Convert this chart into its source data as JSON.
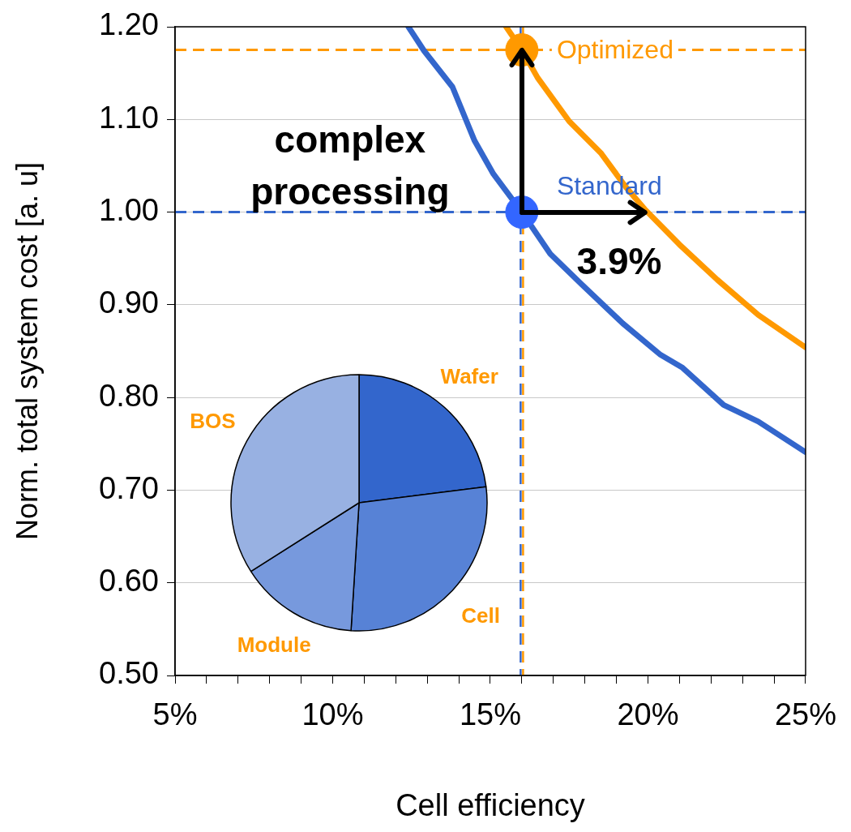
{
  "chart_data": [
    {
      "type": "line",
      "xlabel": "Cell efficiency",
      "ylabel": "Norm. total system cost [a. u]",
      "series": [
        {
          "color": "#3366cc",
          "x": [
            12.4,
            12.9,
            13.8,
            14.5,
            15.1,
            16,
            16.9,
            17.9,
            19.2,
            20.4,
            21.1,
            22.4,
            23.5,
            25
          ],
          "values": [
            1.2,
            1.174,
            1.135,
            1.077,
            1.041,
            1.0,
            0.955,
            0.922,
            0.88,
            0.846,
            0.832,
            0.792,
            0.774,
            0.741
          ]
        },
        {
          "color": "#ff9900",
          "x": [
            15.5,
            16,
            16.5,
            17.5,
            18.5,
            19.3,
            19.9,
            21,
            22.2,
            23.5,
            25
          ],
          "values": [
            1.2,
            1.175,
            1.145,
            1.098,
            1.064,
            1.027,
            1.003,
            0.965,
            0.927,
            0.889,
            0.854
          ]
        },
        {
          "type": "scatter",
          "color": "#3366ff",
          "x": [
            16
          ],
          "values": [
            1.0
          ],
          "marker": "circle"
        },
        {
          "type": "scatter",
          "color": "#ff9900",
          "x": [
            16
          ],
          "values": [
            1.175
          ],
          "marker": "circle"
        }
      ],
      "line_style": "solid",
      "ref_lines": [
        {
          "axis": "y",
          "value": 1.175,
          "label": "Optimized",
          "color": "#ff9900",
          "line_style": "dashed"
        },
        {
          "axis": "y",
          "value": 1.0,
          "label": "Standard",
          "color": "#3366cc",
          "line_style": "dashed"
        },
        {
          "axis": "x",
          "value": 16,
          "color": "#3366cc",
          "line_style": "dashed"
        },
        {
          "axis": "x",
          "value": 16,
          "color": "#ff9900",
          "line_style": "dashed"
        }
      ],
      "annotations": [
        {
          "text": "complex processing",
          "x": 16,
          "y": 1.175
        },
        {
          "text": "3.9%",
          "x": 19.9,
          "y": 1.0
        }
      ],
      "xlim": [
        5,
        25
      ],
      "ylim": [
        0.5,
        1.2
      ],
      "xticks": [
        {
          "value": 5,
          "label": "5%"
        },
        {
          "value": 6,
          "label": null
        },
        {
          "value": 7,
          "label": null
        },
        {
          "value": 8,
          "label": null
        },
        {
          "value": 9,
          "label": null
        },
        {
          "value": 10,
          "label": "10%"
        },
        {
          "value": 11,
          "label": null
        },
        {
          "value": 12,
          "label": null
        },
        {
          "value": 13,
          "label": null
        },
        {
          "value": 14,
          "label": null
        },
        {
          "value": 15,
          "label": "15%"
        },
        {
          "value": 16,
          "label": null
        },
        {
          "value": 17,
          "label": null
        },
        {
          "value": 18,
          "label": null
        },
        {
          "value": 19,
          "label": null
        },
        {
          "value": 20,
          "label": "20%"
        },
        {
          "value": 21,
          "label": null
        },
        {
          "value": 22,
          "label": null
        },
        {
          "value": 23,
          "label": null
        },
        {
          "value": 24,
          "label": null
        },
        {
          "value": 25,
          "label": "25%"
        }
      ],
      "yticks": [
        {
          "value": 0.5,
          "label": "0.50"
        },
        {
          "value": 0.6,
          "label": "0.60"
        },
        {
          "value": 0.7,
          "label": "0.70"
        },
        {
          "value": 0.8,
          "label": "0.80"
        },
        {
          "value": 0.9,
          "label": "0.90"
        },
        {
          "value": 1.0,
          "label": "1.00"
        },
        {
          "value": 1.1,
          "label": "1.10"
        },
        {
          "value": 1.2,
          "label": "1.20"
        }
      ],
      "grid": "y",
      "legend": false
    },
    {
      "type": "pie",
      "categories": [
        "Wafer",
        "Cell",
        "Module",
        "BOS"
      ],
      "values": [
        23,
        28,
        15,
        34
      ],
      "colors": [
        "#3366cc",
        "#5782d6",
        "#7799dd",
        "#98b1e2"
      ],
      "legend": false
    }
  ]
}
